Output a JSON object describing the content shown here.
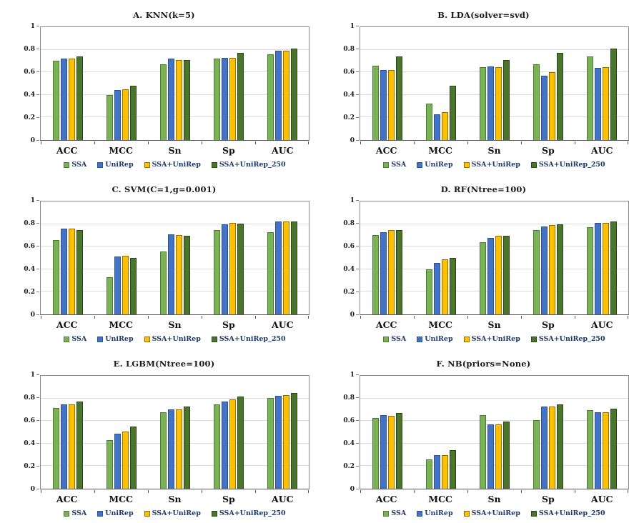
{
  "figure": {
    "background": "#ffffff"
  },
  "series_styles": {
    "SSA": {
      "fill": "#79B356",
      "border": "#4F7A33"
    },
    "UniRep": {
      "fill": "#4472C4",
      "border": "#2F528F"
    },
    "SSA+UniRep": {
      "fill": "#FFC000",
      "border": "#8F7000"
    },
    "SSA+UniRep_250": {
      "fill": "#4B742C",
      "border": "#2C4618"
    }
  },
  "colors": {
    "gridline": "#dcdcdc",
    "plot_border": "#8a8a8a",
    "axis_line": "#595959",
    "title_text": "#1a1a1a",
    "label_text": "#111111",
    "legend_text": "#1F3864"
  },
  "chart_data": [
    {
      "type": "bar",
      "title": "A. KNN(k=5)",
      "categories": [
        "ACC",
        "MCC",
        "Sn",
        "Sp",
        "AUC"
      ],
      "series": [
        {
          "name": "SSA",
          "values": [
            0.7,
            0.4,
            0.67,
            0.72,
            0.76
          ]
        },
        {
          "name": "UniRep",
          "values": [
            0.72,
            0.44,
            0.72,
            0.73,
            0.79
          ]
        },
        {
          "name": "SSA+UniRep",
          "values": [
            0.72,
            0.45,
            0.71,
            0.73,
            0.79
          ]
        },
        {
          "name": "SSA+UniRep_250",
          "values": [
            0.74,
            0.48,
            0.71,
            0.77,
            0.81
          ]
        }
      ],
      "ylim": [
        0,
        1
      ],
      "yticks": [
        0,
        0.2,
        0.4,
        0.6,
        0.8,
        1
      ],
      "grid": true,
      "legend_position": "bottom"
    },
    {
      "type": "bar",
      "title": "B. LDA(solver=svd)",
      "categories": [
        "ACC",
        "MCC",
        "Sn",
        "Sp",
        "AUC"
      ],
      "series": [
        {
          "name": "SSA",
          "values": [
            0.66,
            0.32,
            0.645,
            0.67,
            0.74
          ]
        },
        {
          "name": "UniRep",
          "values": [
            0.62,
            0.23,
            0.655,
            0.57,
            0.64
          ]
        },
        {
          "name": "SSA+UniRep",
          "values": [
            0.62,
            0.25,
            0.645,
            0.6,
            0.645
          ]
        },
        {
          "name": "SSA+UniRep_250",
          "values": [
            0.74,
            0.48,
            0.71,
            0.77,
            0.81
          ]
        }
      ],
      "ylim": [
        0,
        1
      ],
      "yticks": [
        0,
        0.2,
        0.4,
        0.6,
        0.8,
        1
      ],
      "grid": true,
      "legend_position": "bottom"
    },
    {
      "type": "bar",
      "title": "C. SVM(C=1,g=0.001)",
      "categories": [
        "ACC",
        "MCC",
        "Sn",
        "Sp",
        "AUC"
      ],
      "series": [
        {
          "name": "SSA",
          "values": [
            0.66,
            0.33,
            0.56,
            0.75,
            0.73
          ]
        },
        {
          "name": "UniRep",
          "values": [
            0.76,
            0.51,
            0.71,
            0.8,
            0.825
          ]
        },
        {
          "name": "SSA+UniRep",
          "values": [
            0.76,
            0.52,
            0.705,
            0.81,
            0.825
          ]
        },
        {
          "name": "SSA+UniRep_250",
          "values": [
            0.75,
            0.5,
            0.695,
            0.805,
            0.825
          ]
        }
      ],
      "ylim": [
        0,
        1
      ],
      "yticks": [
        0,
        0.2,
        0.4,
        0.6,
        0.8,
        1
      ],
      "grid": true,
      "legend_position": "bottom"
    },
    {
      "type": "bar",
      "title": "D. RF(Ntree=100)",
      "categories": [
        "ACC",
        "MCC",
        "Sn",
        "Sp",
        "AUC"
      ],
      "series": [
        {
          "name": "SSA",
          "values": [
            0.7,
            0.4,
            0.64,
            0.75,
            0.775
          ]
        },
        {
          "name": "UniRep",
          "values": [
            0.73,
            0.455,
            0.675,
            0.78,
            0.81
          ]
        },
        {
          "name": "SSA+UniRep",
          "values": [
            0.745,
            0.49,
            0.695,
            0.79,
            0.81
          ]
        },
        {
          "name": "SSA+UniRep_250",
          "values": [
            0.75,
            0.5,
            0.695,
            0.8,
            0.825
          ]
        }
      ],
      "ylim": [
        0,
        1
      ],
      "yticks": [
        0,
        0.2,
        0.4,
        0.6,
        0.8,
        1
      ],
      "grid": true,
      "legend_position": "bottom"
    },
    {
      "type": "bar",
      "title": "E. LGBM(Ntree=100)",
      "categories": [
        "ACC",
        "MCC",
        "Sn",
        "Sp",
        "AUC"
      ],
      "series": [
        {
          "name": "SSA",
          "values": [
            0.715,
            0.43,
            0.68,
            0.75,
            0.805
          ]
        },
        {
          "name": "UniRep",
          "values": [
            0.745,
            0.49,
            0.705,
            0.775,
            0.82
          ]
        },
        {
          "name": "SSA+UniRep",
          "values": [
            0.75,
            0.505,
            0.705,
            0.79,
            0.83
          ]
        },
        {
          "name": "SSA+UniRep_250",
          "values": [
            0.77,
            0.55,
            0.73,
            0.815,
            0.85
          ]
        }
      ],
      "ylim": [
        0,
        1
      ],
      "yticks": [
        0,
        0.2,
        0.4,
        0.6,
        0.8,
        1
      ],
      "grid": true,
      "legend_position": "bottom"
    },
    {
      "type": "bar",
      "title": "F. NB(priors=None)",
      "categories": [
        "ACC",
        "MCC",
        "Sn",
        "Sp",
        "AUC"
      ],
      "series": [
        {
          "name": "SSA",
          "values": [
            0.625,
            0.26,
            0.65,
            0.61,
            0.695
          ]
        },
        {
          "name": "UniRep",
          "values": [
            0.65,
            0.3,
            0.57,
            0.73,
            0.68
          ]
        },
        {
          "name": "SSA+UniRep",
          "values": [
            0.645,
            0.3,
            0.57,
            0.725,
            0.675
          ]
        },
        {
          "name": "SSA+UniRep_250",
          "values": [
            0.67,
            0.34,
            0.595,
            0.745,
            0.71
          ]
        }
      ],
      "ylim": [
        0,
        1
      ],
      "yticks": [
        0,
        0.2,
        0.4,
        0.6,
        0.8,
        1
      ],
      "grid": true,
      "legend_position": "bottom"
    }
  ]
}
